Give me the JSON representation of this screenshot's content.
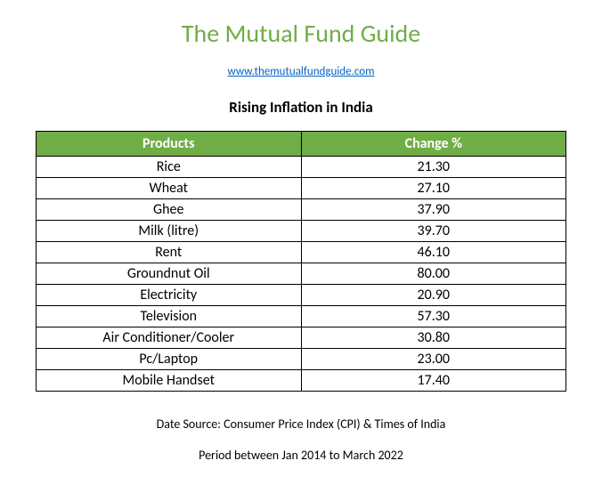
{
  "header": {
    "site_title": "The Mutual Fund Guide",
    "site_title_color": "#70ad47",
    "site_url": "www.themutualfundguide.com",
    "site_url_color": "#0563c1",
    "chart_title": "Rising Inflation in India"
  },
  "table": {
    "header_bg": "#70ad47",
    "header_text_color": "#ffffff",
    "border_color": "#000000",
    "columns": [
      "Products",
      "Change %"
    ],
    "rows": [
      [
        "Rice",
        "21.30"
      ],
      [
        "Wheat",
        "27.10"
      ],
      [
        "Ghee",
        "37.90"
      ],
      [
        "Milk (litre)",
        "39.70"
      ],
      [
        "Rent",
        "46.10"
      ],
      [
        "Groundnut Oil",
        "80.00"
      ],
      [
        "Electricity",
        "20.90"
      ],
      [
        "Television",
        "57.30"
      ],
      [
        "Air Conditioner/Cooler",
        "30.80"
      ],
      [
        "Pc/Laptop",
        "23.00"
      ],
      [
        "Mobile Handset",
        "17.40"
      ]
    ]
  },
  "footer": {
    "source_line": "Date Source: Consumer Price Index (CPI) & Times of India",
    "period_line": "Period between Jan 2014 to March 2022"
  }
}
